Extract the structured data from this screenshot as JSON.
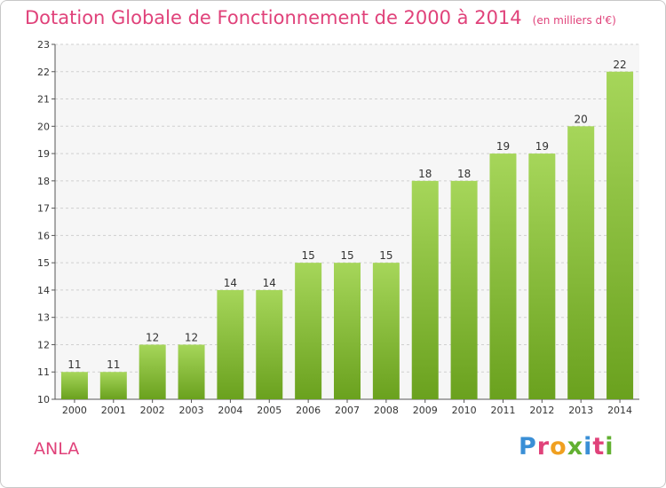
{
  "chart_data": {
    "type": "bar",
    "title": "Dotation Globale de Fonctionnement de 2000 à 2014",
    "subtitle": "(en milliers d'€)",
    "categories": [
      "2000",
      "2001",
      "2002",
      "2003",
      "2004",
      "2005",
      "2006",
      "2007",
      "2008",
      "2009",
      "2010",
      "2011",
      "2012",
      "2013",
      "2014"
    ],
    "values": [
      11,
      11,
      12,
      12,
      14,
      14,
      15,
      15,
      15,
      18,
      18,
      19,
      19,
      20,
      22
    ],
    "ylim": [
      10,
      23
    ],
    "yticks": [
      10,
      11,
      12,
      13,
      14,
      15,
      16,
      17,
      18,
      19,
      20,
      21,
      22,
      23
    ],
    "grid": true,
    "bar_color_top": "#a6d65a",
    "bar_color_bottom": "#6aa11e"
  },
  "footer": {
    "commune": "ANLA",
    "logo_text": "Proxiti"
  },
  "colors": {
    "title": "#e0427a",
    "logo_letters": [
      "#3a8fd6",
      "#e0427a",
      "#f0a020",
      "#62b031",
      "#3a8fd6",
      "#e0427a",
      "#62b031"
    ]
  }
}
